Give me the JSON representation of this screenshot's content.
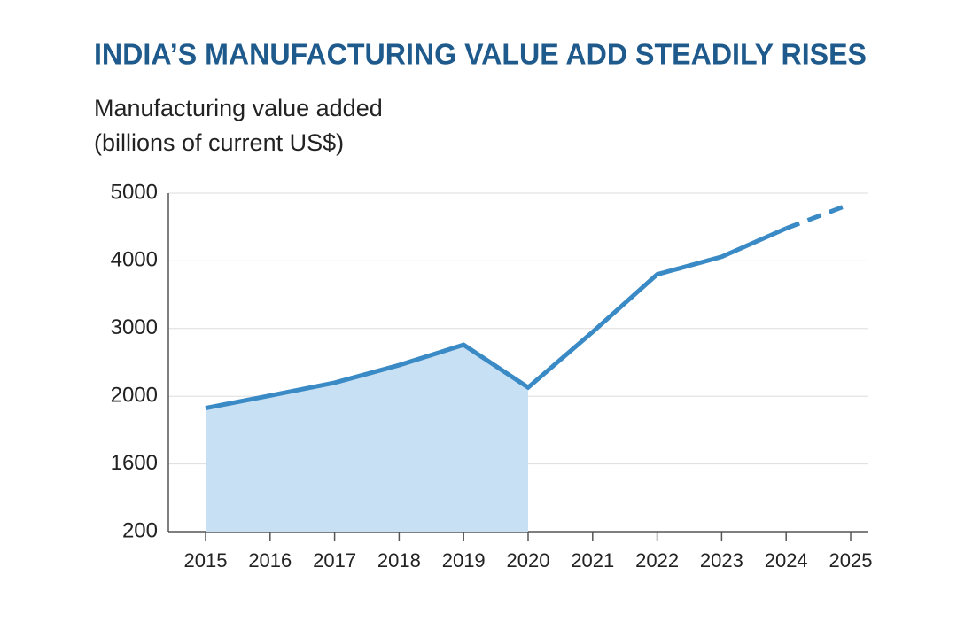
{
  "chart_data": {
    "type": "line",
    "title": "INDIA’S MANUFACTURING VALUE ADD STEADILY RISES",
    "subtitle": [
      "Manufacturing value added",
      "(billions of current US$)"
    ],
    "categories": [
      "2015",
      "2016",
      "2017",
      "2018",
      "2019",
      "2020",
      "2021",
      "2022",
      "2023",
      "2024",
      "2025"
    ],
    "values": [
      1930,
      2010,
      2200,
      2460,
      2760,
      2130,
      2950,
      3800,
      4060,
      4480,
      4840
    ],
    "color": "#3a8ac6",
    "area_color": "#c8e0f3",
    "area_until": "2020",
    "dashed_from": "2024",
    "ylim": [
      200,
      5000
    ],
    "yticks": [
      200,
      1600,
      2000,
      3000,
      4000,
      5000
    ],
    "grid": true
  }
}
